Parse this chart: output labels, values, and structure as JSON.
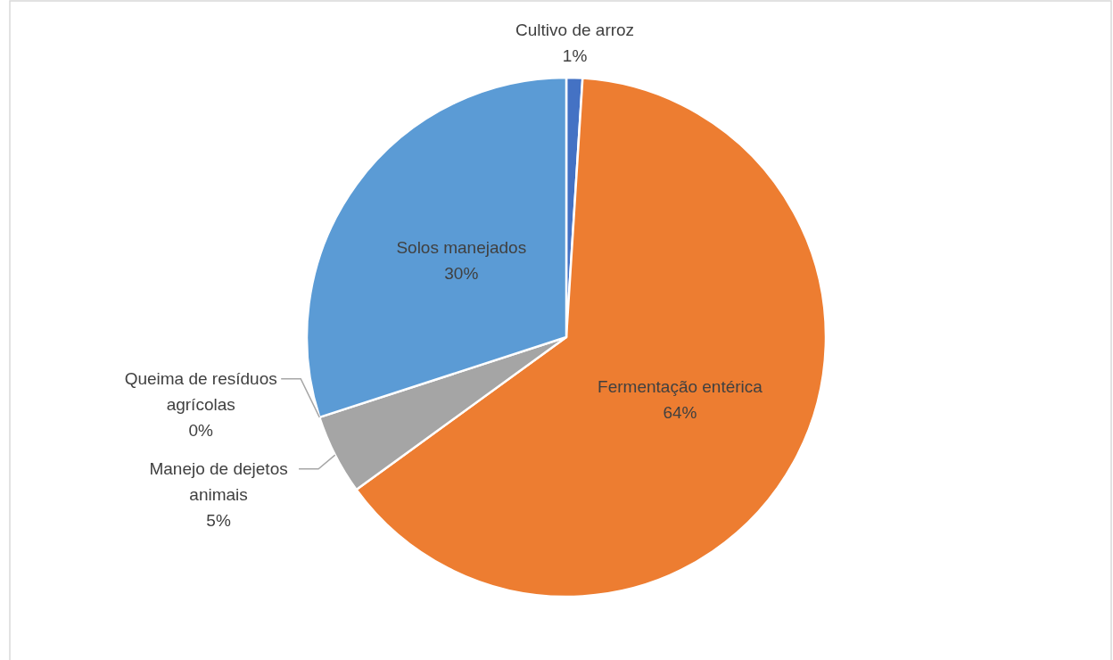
{
  "chart_data": {
    "type": "pie",
    "categories": [
      "Cultivo de arroz",
      "Fermentação entérica",
      "Manejo de dejetos animais",
      "Queima de resíduos agrícolas",
      "Solos manejados"
    ],
    "values": [
      1,
      64,
      5,
      0,
      30
    ],
    "colors": [
      "#4472c4",
      "#ed7d31",
      "#a5a5a5",
      null,
      "#5b9bd5"
    ],
    "value_labels": [
      "1%",
      "64%",
      "5%",
      "0%",
      "30%"
    ]
  }
}
